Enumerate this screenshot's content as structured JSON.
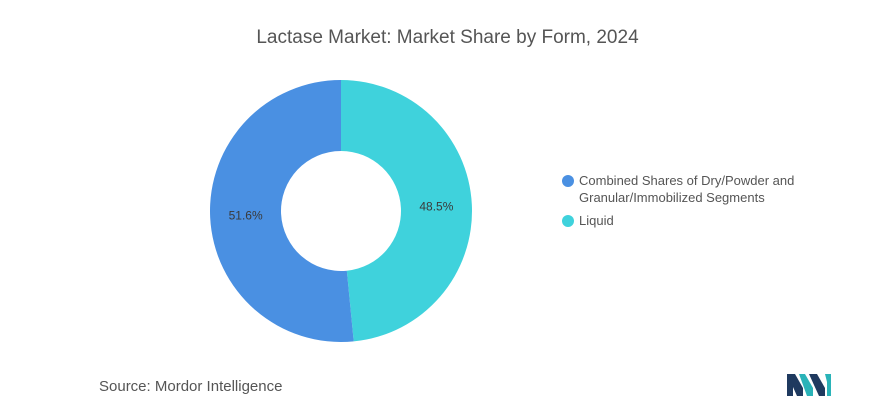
{
  "chart_data": {
    "type": "pie",
    "title": "Lactase Market: Market Share by Form, 2024",
    "slices": [
      {
        "label": "Liquid",
        "value": 48.5,
        "display": "48.5%",
        "color": "#3fd2dc"
      },
      {
        "label": "Combined Shares of Dry/Powder and Granular/Immobilized Segments",
        "value": 51.6,
        "display": "51.6%",
        "color": "#4a90e2"
      }
    ],
    "legend_placement": "right"
  },
  "legend": [
    {
      "line1": "Combined Shares of Dry/Powder and",
      "line2": "Granular/Immobilized Segments",
      "color": "#4a90e2"
    },
    {
      "line1": "Liquid",
      "line2": "",
      "color": "#3fd2dc"
    }
  ],
  "source": {
    "label": "Source:",
    "name": "Mordor Intelligence"
  },
  "colors": {
    "text": "#555555",
    "logo_dark": "#1f3a5f",
    "logo_teal": "#2ab3b8"
  }
}
